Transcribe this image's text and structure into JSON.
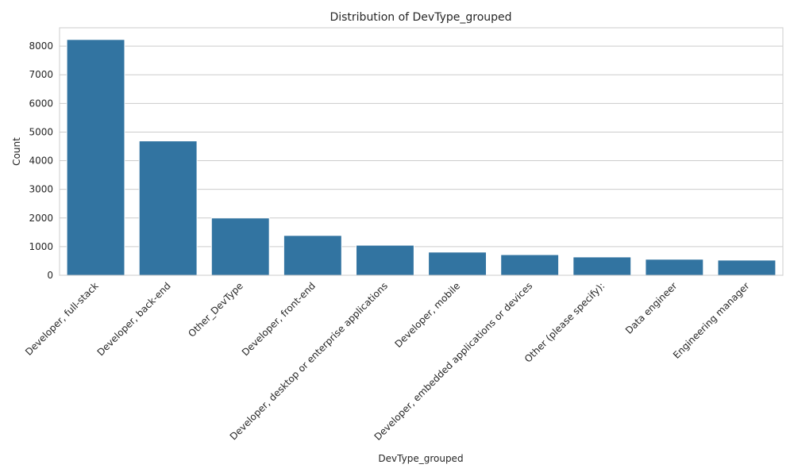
{
  "chart_data": {
    "type": "bar",
    "title": "Distribution of DevType_grouped",
    "xlabel": "DevType_grouped",
    "ylabel": "Count",
    "categories": [
      "Developer, full-stack",
      "Developer, back-end",
      "Other_DevType",
      "Developer, front-end",
      "Developer, desktop or enterprise applications",
      "Developer, mobile",
      "Developer, embedded applications or devices",
      "Other (please specify):",
      "Data engineer",
      "Engineering manager"
    ],
    "values": [
      8230,
      4690,
      2000,
      1390,
      1050,
      810,
      720,
      640,
      560,
      530
    ],
    "ylim": [
      0,
      8640
    ],
    "yticks": [
      0,
      1000,
      2000,
      3000,
      4000,
      5000,
      6000,
      7000,
      8000
    ],
    "grid": true,
    "bar_color": "#3274a1"
  }
}
